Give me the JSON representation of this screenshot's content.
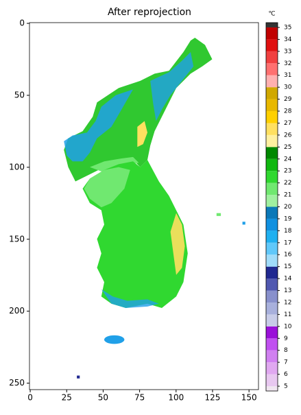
{
  "chart_data": {
    "type": "image",
    "title": "After reprojection",
    "xlim": [
      -0.5,
      156.5
    ],
    "ylim": [
      254.5,
      -0.5
    ],
    "xticks": [
      0,
      25,
      50,
      75,
      100,
      125,
      150
    ],
    "yticks": [
      0,
      50,
      100,
      150,
      200,
      250
    ],
    "colorbar": {
      "label": "℃",
      "lim": [
        4.6,
        35.4
      ],
      "ticks": [
        5,
        6,
        7,
        8,
        9,
        10,
        11,
        12,
        13,
        14,
        15,
        16,
        17,
        18,
        19,
        20,
        21,
        22,
        23,
        24,
        25,
        26,
        27,
        28,
        29,
        30,
        31,
        32,
        33,
        34,
        35
      ],
      "colors": [
        "#f0e6f0",
        "#e8c8f0",
        "#e0a8f0",
        "#d080f0",
        "#c050f0",
        "#9a10d8",
        "#c8cce8",
        "#a8b0dc",
        "#8890cc",
        "#5058b0",
        "#202890",
        "#a0dcfa",
        "#60c8fa",
        "#20b0f0",
        "#1090e0",
        "#0a78b8",
        "#a0f0a0",
        "#70e870",
        "#30d830",
        "#10b810",
        "#008800",
        "#fff0a0",
        "#ffe060",
        "#ffd000",
        "#e8b800",
        "#d0a800",
        "#ffb0b0",
        "#ff7070",
        "#f04040",
        "#e01010",
        "#c00000",
        "#333333"
      ]
    }
  }
}
